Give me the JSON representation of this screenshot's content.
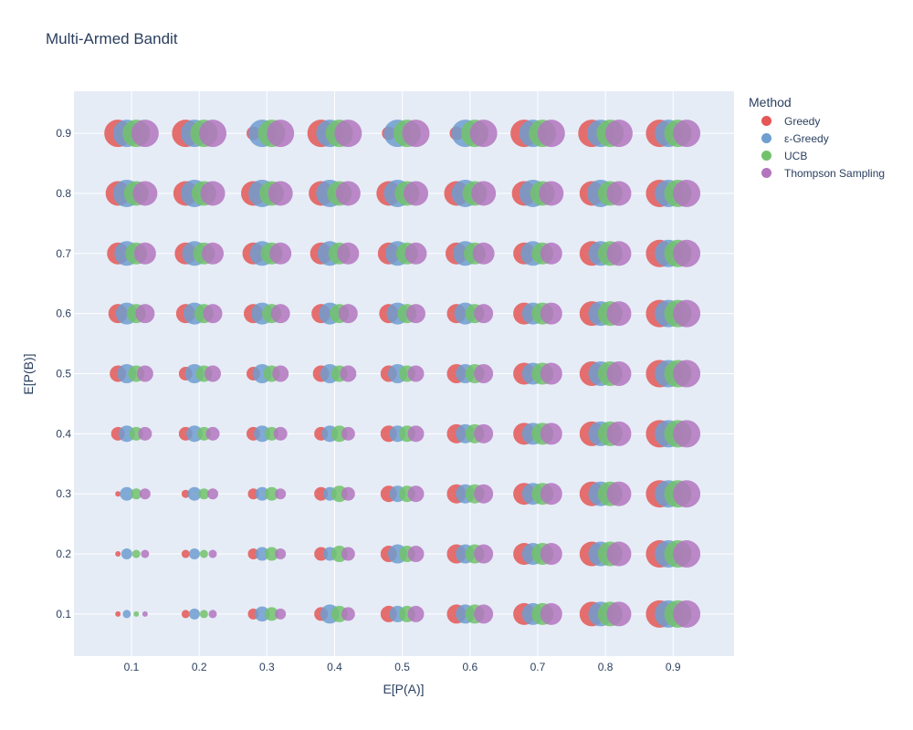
{
  "chart_data": {
    "type": "scatter",
    "title": "Multi-Armed Bandit",
    "xlabel": "E[P(A)]",
    "ylabel": "E[P(B)]",
    "xlim": [
      0.015,
      0.99
    ],
    "ylim": [
      0.03,
      0.97
    ],
    "x_ticks": [
      "0.1",
      "0.2",
      "0.3",
      "0.4",
      "0.5",
      "0.6",
      "0.7",
      "0.8",
      "0.9"
    ],
    "y_ticks": [
      "0.1",
      "0.2",
      "0.3",
      "0.4",
      "0.5",
      "0.6",
      "0.7",
      "0.8",
      "0.9"
    ],
    "grid": true,
    "legend": {
      "title": "Method",
      "placement": "top-right, outside plot"
    },
    "size_encoding": "marker size",
    "series": [
      {
        "name": "Greedy",
        "color": "#e45756",
        "x_offset": -0.02,
        "sizes": [
          [
            0.1,
            0.2,
            0.3,
            0.4,
            0.5,
            0.6,
            0.7,
            0.8,
            0.9
          ],
          [
            0.1,
            0.2,
            0.3,
            0.4,
            0.5,
            0.6,
            0.7,
            0.8,
            0.9
          ],
          [
            0.1,
            0.2,
            0.3,
            0.4,
            0.5,
            0.6,
            0.7,
            0.8,
            0.9
          ],
          [
            0.4,
            0.4,
            0.4,
            0.4,
            0.5,
            0.6,
            0.7,
            0.8,
            0.9
          ],
          [
            0.5,
            0.4,
            0.4,
            0.5,
            0.5,
            0.6,
            0.7,
            0.8,
            0.9
          ],
          [
            0.6,
            0.6,
            0.6,
            0.6,
            0.6,
            0.6,
            0.7,
            0.8,
            0.9
          ],
          [
            0.7,
            0.7,
            0.7,
            0.7,
            0.7,
            0.7,
            0.7,
            0.8,
            0.9
          ],
          [
            0.8,
            0.8,
            0.8,
            0.8,
            0.8,
            0.8,
            0.8,
            0.8,
            0.9
          ],
          [
            0.9,
            0.9,
            0.4,
            0.9,
            0.4,
            0.4,
            0.9,
            0.9,
            0.9
          ]
        ]
      },
      {
        "name": "ε-Greedy",
        "color": "#6f9ed0",
        "x_offset": -0.007,
        "sizes": [
          [
            0.2,
            0.3,
            0.45,
            0.6,
            0.5,
            0.6,
            0.7,
            0.8,
            0.9
          ],
          [
            0.3,
            0.3,
            0.4,
            0.4,
            0.6,
            0.6,
            0.7,
            0.8,
            0.9
          ],
          [
            0.4,
            0.4,
            0.4,
            0.4,
            0.5,
            0.6,
            0.7,
            0.8,
            0.9
          ],
          [
            0.5,
            0.5,
            0.5,
            0.5,
            0.5,
            0.6,
            0.7,
            0.8,
            0.9
          ],
          [
            0.6,
            0.6,
            0.6,
            0.6,
            0.6,
            0.6,
            0.7,
            0.8,
            0.9
          ],
          [
            0.7,
            0.7,
            0.7,
            0.7,
            0.7,
            0.7,
            0.7,
            0.8,
            0.9
          ],
          [
            0.8,
            0.8,
            0.8,
            0.8,
            0.8,
            0.8,
            0.8,
            0.8,
            0.9
          ],
          [
            0.9,
            0.9,
            0.9,
            0.9,
            0.9,
            0.9,
            0.9,
            0.9,
            0.9
          ],
          [
            0.9,
            0.9,
            0.9,
            0.9,
            0.9,
            0.9,
            0.9,
            0.9,
            0.9
          ]
        ]
      },
      {
        "name": "UCB",
        "color": "#72c26b",
        "x_offset": 0.007,
        "sizes": [
          [
            0.1,
            0.2,
            0.4,
            0.5,
            0.5,
            0.6,
            0.7,
            0.8,
            0.9
          ],
          [
            0.2,
            0.2,
            0.4,
            0.5,
            0.5,
            0.6,
            0.7,
            0.8,
            0.9
          ],
          [
            0.3,
            0.3,
            0.4,
            0.5,
            0.5,
            0.6,
            0.7,
            0.8,
            0.9
          ],
          [
            0.4,
            0.4,
            0.4,
            0.5,
            0.5,
            0.6,
            0.7,
            0.8,
            0.9
          ],
          [
            0.5,
            0.5,
            0.5,
            0.5,
            0.5,
            0.6,
            0.7,
            0.8,
            0.9
          ],
          [
            0.6,
            0.6,
            0.6,
            0.6,
            0.6,
            0.6,
            0.7,
            0.8,
            0.9
          ],
          [
            0.7,
            0.7,
            0.7,
            0.7,
            0.7,
            0.7,
            0.7,
            0.8,
            0.9
          ],
          [
            0.8,
            0.8,
            0.8,
            0.8,
            0.8,
            0.8,
            0.8,
            0.8,
            0.9
          ],
          [
            0.9,
            0.9,
            0.9,
            0.9,
            0.9,
            0.9,
            0.9,
            0.9,
            0.9
          ]
        ]
      },
      {
        "name": "Thompson Sampling",
        "color": "#b375be",
        "x_offset": 0.02,
        "sizes": [
          [
            0.1,
            0.2,
            0.3,
            0.4,
            0.5,
            0.6,
            0.7,
            0.8,
            0.9
          ],
          [
            0.2,
            0.2,
            0.3,
            0.4,
            0.5,
            0.6,
            0.7,
            0.8,
            0.9
          ],
          [
            0.3,
            0.3,
            0.3,
            0.4,
            0.5,
            0.6,
            0.7,
            0.8,
            0.9
          ],
          [
            0.4,
            0.4,
            0.4,
            0.4,
            0.5,
            0.6,
            0.7,
            0.8,
            0.9
          ],
          [
            0.5,
            0.5,
            0.5,
            0.5,
            0.5,
            0.6,
            0.7,
            0.8,
            0.9
          ],
          [
            0.6,
            0.6,
            0.6,
            0.6,
            0.6,
            0.6,
            0.7,
            0.8,
            0.9
          ],
          [
            0.7,
            0.7,
            0.7,
            0.7,
            0.7,
            0.7,
            0.7,
            0.8,
            0.9
          ],
          [
            0.8,
            0.8,
            0.8,
            0.8,
            0.8,
            0.8,
            0.8,
            0.8,
            0.9
          ],
          [
            0.9,
            0.9,
            0.9,
            0.9,
            0.9,
            0.9,
            0.9,
            0.9,
            0.9
          ]
        ]
      }
    ]
  }
}
